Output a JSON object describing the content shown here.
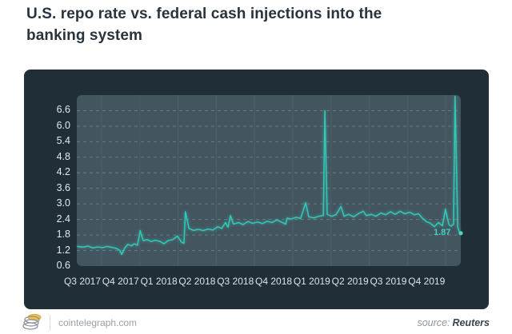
{
  "title": "U.S. repo rate vs. federal cash injections into the banking system",
  "footer": {
    "site": "cointelegraph.com",
    "source_label": "source:",
    "source_name": "Reuters"
  },
  "chart_data": {
    "type": "line",
    "title": "U.S. repo rate vs. federal cash injections into the banking system",
    "xlabel": "",
    "ylabel": "",
    "x_tick_labels": [
      "Q3 2017",
      "Q4 2017",
      "Q1 2018",
      "Q2 2018",
      "Q3 2018",
      "Q4 2018",
      "Q1 2019",
      "Q2 2019",
      "Q3 2019",
      "Q4 2019"
    ],
    "y_ticks": [
      0.6,
      1.2,
      1.8,
      2.4,
      3.0,
      3.6,
      4.2,
      4.8,
      5.4,
      6.0,
      6.6
    ],
    "y_range": [
      0.6,
      7.2
    ],
    "grid": "horizontal-dashed",
    "legend": "none",
    "end_label": "1.87",
    "end_value": 1.87,
    "annotations": [
      {
        "text": "1.87",
        "x_frac": 1.0,
        "value": 1.87
      }
    ],
    "notable_events": [
      {
        "x_frac": 0.646,
        "value": 6.6,
        "desc": "repo rate spike near start of Q1 2019"
      },
      {
        "x_frac": 0.985,
        "value": 7.15,
        "desc": "repo rate spike in Q4 2019, then drop to 1.87"
      }
    ],
    "colors": {
      "card_background": "#202e37",
      "plot_background": "#43555f",
      "line": "#30c7b5",
      "end_dot": "#45d8c6",
      "gridline": "rgba(255,255,255,0.22)",
      "vertical_gridline": "rgba(255,255,255,0.06)",
      "axis_text": "#e3e9ec",
      "title_text": "#29333e"
    },
    "series": [
      {
        "name": "U.S. repo rate (%)",
        "color": "#30c7b5",
        "points": [
          [
            0.002,
            1.36
          ],
          [
            0.017,
            1.33
          ],
          [
            0.029,
            1.37
          ],
          [
            0.042,
            1.3
          ],
          [
            0.054,
            1.34
          ],
          [
            0.067,
            1.31
          ],
          [
            0.079,
            1.36
          ],
          [
            0.092,
            1.32
          ],
          [
            0.104,
            1.28
          ],
          [
            0.112,
            1.2
          ],
          [
            0.117,
            1.05
          ],
          [
            0.125,
            1.3
          ],
          [
            0.133,
            1.44
          ],
          [
            0.142,
            1.38
          ],
          [
            0.15,
            1.46
          ],
          [
            0.158,
            1.4
          ],
          [
            0.165,
            1.97
          ],
          [
            0.173,
            1.58
          ],
          [
            0.183,
            1.62
          ],
          [
            0.194,
            1.55
          ],
          [
            0.204,
            1.6
          ],
          [
            0.217,
            1.55
          ],
          [
            0.227,
            1.46
          ],
          [
            0.237,
            1.58
          ],
          [
            0.25,
            1.62
          ],
          [
            0.262,
            1.76
          ],
          [
            0.273,
            1.52
          ],
          [
            0.279,
            1.48
          ],
          [
            0.283,
            2.7
          ],
          [
            0.292,
            2.05
          ],
          [
            0.304,
            1.98
          ],
          [
            0.317,
            2.02
          ],
          [
            0.329,
            1.97
          ],
          [
            0.342,
            2.03
          ],
          [
            0.354,
            1.99
          ],
          [
            0.367,
            2.12
          ],
          [
            0.377,
            2.05
          ],
          [
            0.387,
            2.28
          ],
          [
            0.394,
            2.1
          ],
          [
            0.4,
            2.55
          ],
          [
            0.408,
            2.22
          ],
          [
            0.421,
            2.28
          ],
          [
            0.433,
            2.2
          ],
          [
            0.446,
            2.32
          ],
          [
            0.458,
            2.25
          ],
          [
            0.471,
            2.3
          ],
          [
            0.483,
            2.24
          ],
          [
            0.496,
            2.33
          ],
          [
            0.508,
            2.28
          ],
          [
            0.521,
            2.38
          ],
          [
            0.533,
            2.3
          ],
          [
            0.544,
            2.22
          ],
          [
            0.548,
            2.45
          ],
          [
            0.558,
            2.42
          ],
          [
            0.571,
            2.48
          ],
          [
            0.583,
            2.44
          ],
          [
            0.596,
            3.05
          ],
          [
            0.604,
            2.5
          ],
          [
            0.617,
            2.46
          ],
          [
            0.629,
            2.52
          ],
          [
            0.642,
            2.55
          ],
          [
            0.646,
            6.6
          ],
          [
            0.652,
            2.6
          ],
          [
            0.663,
            2.52
          ],
          [
            0.675,
            2.58
          ],
          [
            0.688,
            2.9
          ],
          [
            0.696,
            2.52
          ],
          [
            0.708,
            2.6
          ],
          [
            0.721,
            2.5
          ],
          [
            0.733,
            2.62
          ],
          [
            0.746,
            2.72
          ],
          [
            0.754,
            2.55
          ],
          [
            0.767,
            2.6
          ],
          [
            0.779,
            2.52
          ],
          [
            0.792,
            2.65
          ],
          [
            0.804,
            2.58
          ],
          [
            0.817,
            2.7
          ],
          [
            0.829,
            2.6
          ],
          [
            0.842,
            2.72
          ],
          [
            0.854,
            2.62
          ],
          [
            0.867,
            2.68
          ],
          [
            0.879,
            2.58
          ],
          [
            0.89,
            2.62
          ],
          [
            0.9,
            2.45
          ],
          [
            0.91,
            2.32
          ],
          [
            0.921,
            2.25
          ],
          [
            0.931,
            2.12
          ],
          [
            0.942,
            2.28
          ],
          [
            0.952,
            2.15
          ],
          [
            0.96,
            2.8
          ],
          [
            0.969,
            2.2
          ],
          [
            0.975,
            2.14
          ],
          [
            0.981,
            2.22
          ],
          [
            0.985,
            7.15
          ],
          [
            0.992,
            2.1
          ],
          [
            0.996,
            1.92
          ],
          [
            1.0,
            1.87
          ]
        ]
      }
    ]
  }
}
